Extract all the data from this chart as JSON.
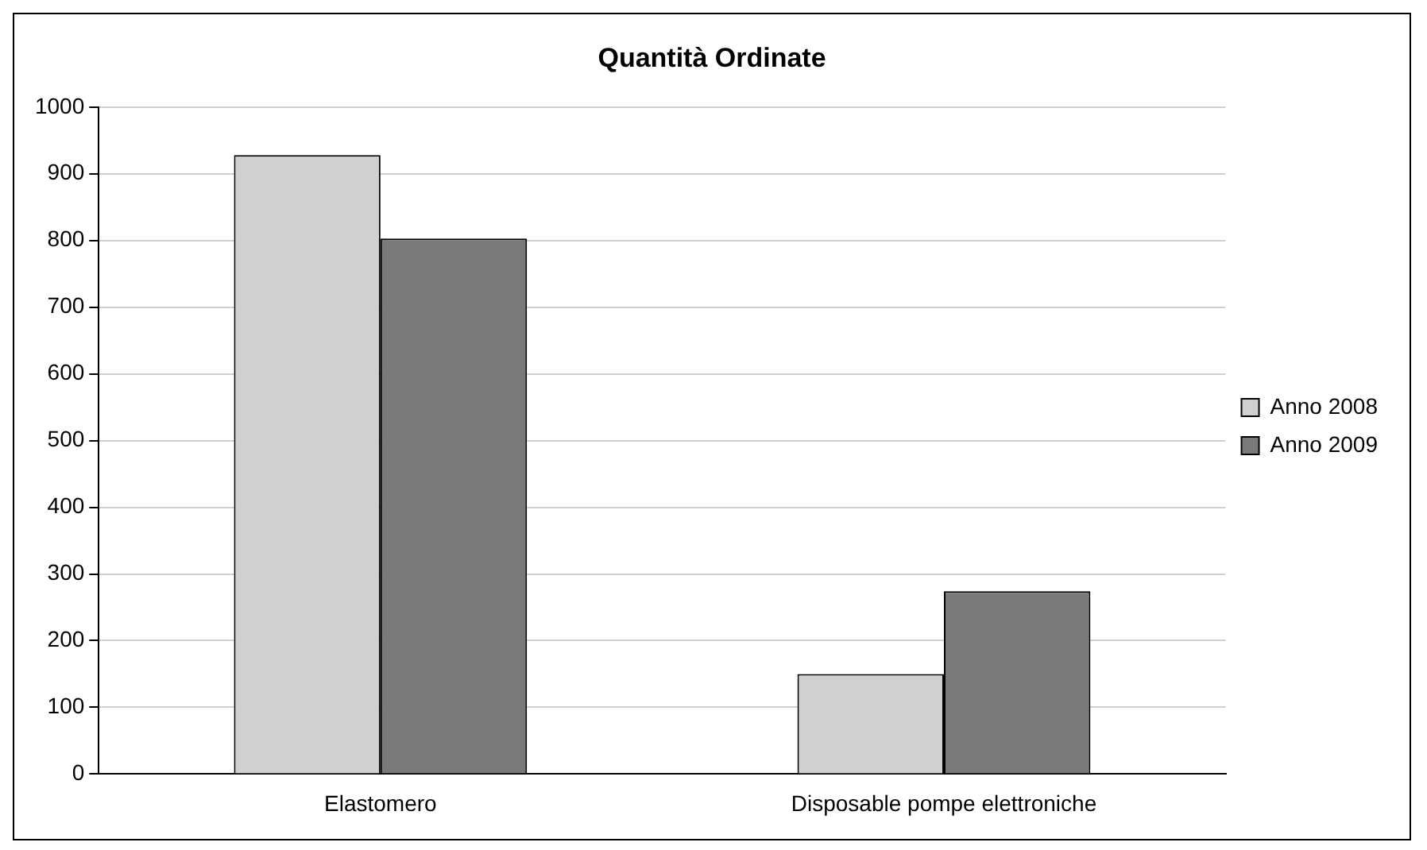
{
  "chart_data": {
    "type": "bar",
    "title": "Quantità Ordinate",
    "categories": [
      "Elastomero",
      "Disposable pompe elettroniche"
    ],
    "series": [
      {
        "name": "Anno 2008",
        "color": "#d0d0d0",
        "values": [
          928,
          150
        ]
      },
      {
        "name": "Anno 2009",
        "color": "#7a7a7a",
        "values": [
          803,
          274
        ]
      }
    ],
    "ylim": [
      0,
      1000
    ],
    "yticks": [
      0,
      100,
      200,
      300,
      400,
      500,
      600,
      700,
      800,
      900,
      1000
    ],
    "grid": "y",
    "legend": "right"
  }
}
